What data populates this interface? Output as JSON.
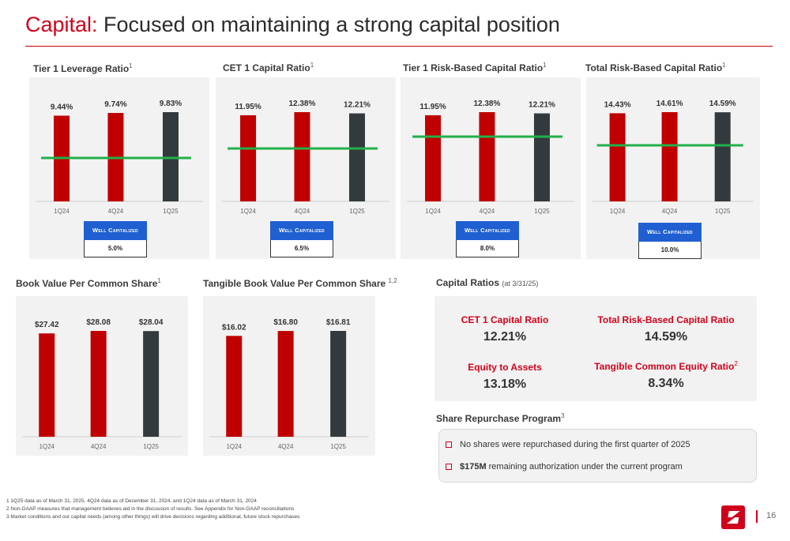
{
  "header": {
    "title_accent": "Capital:",
    "title_rest": " Focused on maintaining a strong capital position"
  },
  "colors": {
    "red": "#c00000",
    "dark": "#333a3d",
    "green": "#22b04a",
    "blue": "#1f5fd1"
  },
  "charts": {
    "tier1_leverage": {
      "title": "Tier 1 Leverage Ratio",
      "sup": "1",
      "well_capitalized_label": "Well Capitalized",
      "well_capitalized_value": "5.0%"
    },
    "cet1": {
      "title": "CET 1 Capital Ratio",
      "sup": "1",
      "well_capitalized_label": "Well Capitalized",
      "well_capitalized_value": "6.5%"
    },
    "tier1_risk": {
      "title": "Tier 1 Risk-Based Capital Ratio",
      "sup": "1",
      "well_capitalized_label": "Well Capitalized",
      "well_capitalized_value": "8.0%"
    },
    "total_risk": {
      "title": "Total Risk-Based Capital Ratio",
      "sup": "1",
      "well_capitalized_label": "Well Capitalized",
      "well_capitalized_value": "10.0%"
    },
    "bvps": {
      "title": "Book Value Per Common Share",
      "sup": "1"
    },
    "tbvps": {
      "title": "Tangible Book Value Per Common Share",
      "sup": "1,2"
    }
  },
  "chart_data": [
    {
      "type": "bar",
      "title": "Tier 1 Leverage Ratio",
      "categories": [
        "1Q24",
        "4Q24",
        "1Q25"
      ],
      "values": [
        9.44,
        9.74,
        9.83
      ],
      "labels": [
        "9.44%",
        "9.74%",
        "9.83%"
      ],
      "reference_line": 5.0,
      "reference_label": "Well Capitalized"
    },
    {
      "type": "bar",
      "title": "CET 1 Capital Ratio",
      "categories": [
        "1Q24",
        "4Q24",
        "1Q25"
      ],
      "values": [
        11.95,
        12.38,
        12.21
      ],
      "labels": [
        "11.95%",
        "12.38%",
        "12.21%"
      ],
      "reference_line": 6.5,
      "reference_label": "Well Capitalized"
    },
    {
      "type": "bar",
      "title": "Tier 1 Risk-Based Capital Ratio",
      "categories": [
        "1Q24",
        "4Q24",
        "1Q25"
      ],
      "values": [
        11.95,
        12.38,
        12.21
      ],
      "labels": [
        "11.95%",
        "12.38%",
        "12.21%"
      ],
      "reference_line": 8.0,
      "reference_label": "Well Capitalized"
    },
    {
      "type": "bar",
      "title": "Total Risk-Based Capital Ratio",
      "categories": [
        "1Q24",
        "4Q24",
        "1Q25"
      ],
      "values": [
        14.43,
        14.61,
        14.59
      ],
      "labels": [
        "14.43%",
        "14.61%",
        "14.59%"
      ],
      "reference_line": 10.0,
      "reference_label": "Well Capitalized"
    },
    {
      "type": "bar",
      "title": "Book Value Per Common Share",
      "categories": [
        "1Q24",
        "4Q24",
        "1Q25"
      ],
      "values": [
        27.42,
        28.08,
        28.04
      ],
      "labels": [
        "$27.42",
        "$28.08",
        "$28.04"
      ]
    },
    {
      "type": "bar",
      "title": "Tangible Book Value Per Common Share",
      "categories": [
        "1Q24",
        "4Q24",
        "1Q25"
      ],
      "values": [
        16.02,
        16.8,
        16.81
      ],
      "labels": [
        "$16.02",
        "$16.80",
        "$16.81"
      ]
    }
  ],
  "capital_ratios": {
    "title": "Capital Ratios",
    "subtitle": "(at 3/31/25)",
    "items": [
      {
        "label": "CET 1 Capital Ratio",
        "sup": "",
        "value": "12.21%"
      },
      {
        "label": "Total Risk-Based Capital Ratio",
        "sup": "",
        "value": "14.59%"
      },
      {
        "label": "Equity to Assets",
        "sup": "",
        "value": "13.18%"
      },
      {
        "label": "Tangible Common Equity Ratio",
        "sup": "2",
        "value": "8.34%"
      }
    ]
  },
  "repurchase": {
    "title": "Share Repurchase Program",
    "sup": "3",
    "item1": "No shares were repurchased during the first quarter of 2025",
    "item2_strong": "$175M",
    "item2_rest": "remaining authorization under the current program"
  },
  "footnotes": [
    "1  1Q25 data as of March 31, 2025, 4Q24 data as of December 31, 2024, and 1Q24 data as of March 31, 2024",
    "2  Non-GAAP measures that management believes aid in the discussion of results. See Appendix for Non-GAAP reconciliations",
    "3  Market conditions and our capital needs (among other things) will drive decisions regarding additional, future stock repurchases"
  ],
  "footer": {
    "page_number": "16"
  }
}
